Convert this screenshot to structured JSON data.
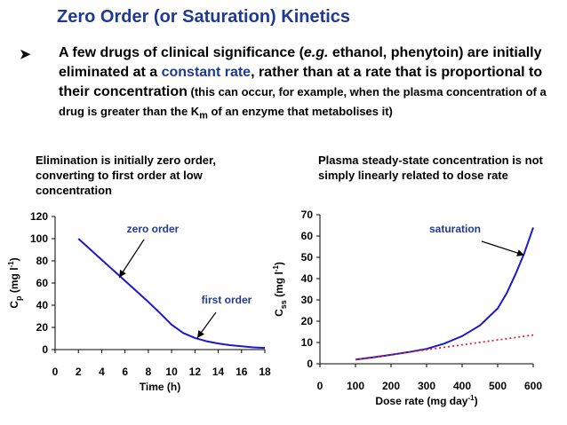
{
  "title": "Zero Order (or Saturation) Kinetics",
  "bullet": {
    "p1": "A few drugs of clinical significance (",
    "eg": "e.g.",
    "p2": " ethanol, phenytoin) are initially eliminated at a ",
    "constant_rate": "constant rate",
    "p3": ", rather than at a rate that is proportional to their concentration",
    "p4": " (this can occur, for example, when the plasma concentration of a drug is greater than the K",
    "km_sub": "m",
    "p5": " of an enzyme that metabolises it)"
  },
  "captions": {
    "left": "Elimination is initially zero order, converting to first order at low concentration",
    "right": "Plasma steady-state concentration is not simply linearly related to dose rate"
  },
  "colors": {
    "accent": "#1f3a93",
    "curve": "#1a1ac8",
    "linear": "#e0202a"
  },
  "chart_data": [
    {
      "type": "line",
      "title": "",
      "xlabel": "Time (h)",
      "ylabel_main": "C",
      "ylabel_sub": "p",
      "ylabel_unit": "(mg l",
      "ylabel_sup": "-1",
      "ylabel_close": ")",
      "xlim": [
        0,
        18
      ],
      "ylim": [
        0,
        120
      ],
      "xticks": [
        "0",
        "2",
        "4",
        "6",
        "8",
        "10",
        "12",
        "14",
        "16",
        "18"
      ],
      "yticks": [
        "0",
        "20",
        "40",
        "60",
        "80",
        "100",
        "120"
      ],
      "series": [
        {
          "name": "Cp",
          "x": [
            2,
            4,
            6,
            8,
            9,
            10,
            11,
            12,
            13,
            14,
            15,
            16,
            17,
            18
          ],
          "y": [
            100,
            81,
            62,
            43,
            33,
            22.5,
            15,
            10.5,
            7.5,
            5.5,
            4,
            3,
            2,
            1.5
          ]
        }
      ],
      "annotations": [
        {
          "text": "zero order",
          "arrow_to": [
            5.5,
            65
          ]
        },
        {
          "text": "first order",
          "arrow_to": [
            12.2,
            10.5
          ]
        }
      ]
    },
    {
      "type": "line",
      "title": "",
      "xlabel_main": "Dose rate (mg day",
      "xlabel_sup": "-1",
      "xlabel_close": ")",
      "ylabel_main": "C",
      "ylabel_sub": "ss",
      "ylabel_unit": "(mg l",
      "ylabel_sup": "-1",
      "ylabel_close": ")",
      "xlim": [
        0,
        600
      ],
      "ylim": [
        0,
        70
      ],
      "xticks": [
        "0",
        "100",
        "200",
        "300",
        "400",
        "500",
        "600"
      ],
      "yticks": [
        "0",
        "10",
        "20",
        "30",
        "40",
        "50",
        "60",
        "70"
      ],
      "series": [
        {
          "name": "Css (saturation)",
          "x": [
            100,
            150,
            200,
            250,
            300,
            350,
            400,
            450,
            500,
            525,
            550,
            575,
            600
          ],
          "y": [
            2,
            3,
            4.2,
            5.5,
            7,
            9.5,
            13,
            18,
            26,
            33,
            42,
            52,
            64
          ]
        },
        {
          "name": "linear",
          "style": "dotted",
          "x": [
            100,
            600
          ],
          "y": [
            2,
            13.5
          ]
        }
      ],
      "annotations": [
        {
          "text": "saturation",
          "arrow_to": [
            575,
            51
          ]
        }
      ]
    }
  ]
}
